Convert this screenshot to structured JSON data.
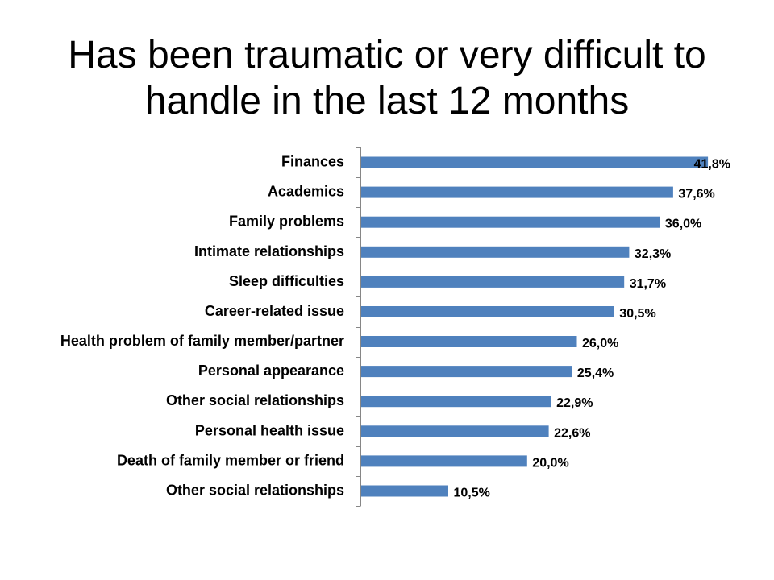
{
  "chart_data": {
    "type": "bar",
    "orientation": "horizontal",
    "title": "Has been traumatic or very difficult to handle in the last 12 months",
    "categories": [
      "Finances",
      "Academics",
      "Family problems",
      "Intimate relationships",
      "Sleep difficulties",
      "Career-related issue",
      "Health problem of family member/partner",
      "Personal appearance",
      "Other social relationships",
      "Personal health issue",
      "Death of family member or friend",
      "Other social relationships"
    ],
    "values": [
      41.8,
      37.6,
      36.0,
      32.3,
      31.7,
      30.5,
      26.0,
      25.4,
      22.9,
      22.6,
      20.0,
      10.5
    ],
    "data_labels": [
      "41,8%",
      "37,6%",
      "36,0%",
      "32,3%",
      "31,7%",
      "30,5%",
      "26,0%",
      "25,4%",
      "22,9%",
      "22,6%",
      "20,0%",
      "10,5%"
    ],
    "grid": false,
    "legend": "none",
    "bar_color": "#4F81BD",
    "axis_color": "#868686"
  }
}
